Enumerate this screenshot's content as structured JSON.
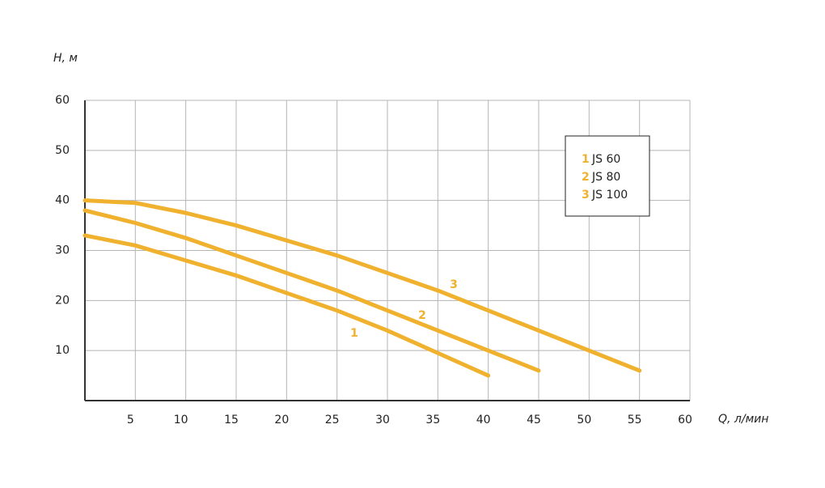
{
  "chart_data": {
    "type": "line",
    "x_label": "Q, л/мин",
    "y_label": "H, м",
    "xlim": [
      0,
      60
    ],
    "ylim": [
      0,
      60
    ],
    "xticks": [
      5,
      10,
      15,
      20,
      25,
      30,
      35,
      40,
      45,
      50,
      55,
      60
    ],
    "yticks": [
      10,
      20,
      30,
      40,
      50,
      60
    ],
    "grid": true,
    "legend": "upper right",
    "series": [
      {
        "label": "1",
        "name": "JS 60",
        "color": "#f0b12e",
        "x": [
          0,
          5,
          10,
          15,
          20,
          25,
          30,
          35,
          40
        ],
        "values": [
          33,
          31,
          28,
          25,
          21.5,
          18,
          14,
          9.5,
          5
        ]
      },
      {
        "label": "2",
        "name": "JS 80",
        "color": "#f0b12e",
        "x": [
          0,
          5,
          10,
          15,
          20,
          25,
          30,
          35,
          40,
          45
        ],
        "values": [
          38,
          35.5,
          32.5,
          29,
          25.5,
          22,
          18,
          14,
          10,
          6
        ]
      },
      {
        "label": "3",
        "name": "JS 100",
        "color": "#f0b12e",
        "x": [
          0,
          5,
          10,
          15,
          20,
          25,
          30,
          35,
          40,
          45,
          50,
          55
        ],
        "values": [
          40,
          39.5,
          37.5,
          35,
          32,
          29,
          25.5,
          22,
          18,
          14,
          10,
          6
        ]
      }
    ]
  }
}
